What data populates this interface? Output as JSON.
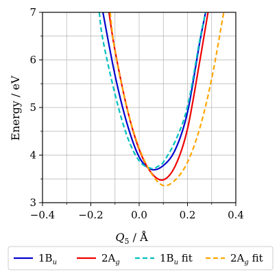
{
  "chart_data": {
    "type": "line",
    "xlabel": "Q",
    "xlabel_sub": "5",
    "xlabel_unit": "/ Å",
    "ylabel": "Energy / eV",
    "xlim": [
      -0.4,
      0.4
    ],
    "ylim": [
      3,
      7
    ],
    "x_ticks": [
      -0.4,
      -0.2,
      0.0,
      0.2,
      0.4
    ],
    "x_tick_labels": [
      "−0.4",
      "−0.2",
      "0.0",
      "0.2",
      "0.4"
    ],
    "y_ticks": [
      3,
      4,
      5,
      6,
      7
    ],
    "y_tick_labels": [
      "3",
      "4",
      "5",
      "6",
      "7"
    ],
    "grid": true,
    "legend_position": "bottom-outside",
    "series": [
      {
        "name": "1B",
        "sub": "u",
        "suffix": "",
        "color": "#0000cc",
        "dash": "solid",
        "x": [
          -0.15,
          -0.1,
          -0.05,
          0.0,
          0.05,
          0.1,
          0.15,
          0.2,
          0.25,
          0.275
        ],
        "y": [
          7.0,
          5.68,
          4.66,
          3.96,
          3.7,
          3.78,
          4.12,
          4.9,
          6.35,
          7.0
        ]
      },
      {
        "name": "2A",
        "sub": "g",
        "suffix": "",
        "color": "#ee0000",
        "dash": "solid",
        "x": [
          -0.125,
          -0.1,
          -0.05,
          0.0,
          0.05,
          0.1,
          0.15,
          0.2,
          0.25,
          0.285
        ],
        "y": [
          7.0,
          6.2,
          4.98,
          4.12,
          3.63,
          3.48,
          3.78,
          4.55,
          5.95,
          7.0
        ]
      },
      {
        "name": "1B",
        "sub": "u",
        "suffix": " fit",
        "color": "#00bfbf",
        "dash": "dashed",
        "x": [
          -0.165,
          -0.15,
          -0.1,
          -0.05,
          0.0,
          0.05,
          0.08,
          0.1,
          0.15,
          0.2,
          0.25,
          0.275
        ],
        "y": [
          7.0,
          6.42,
          5.28,
          4.4,
          3.88,
          3.72,
          3.77,
          3.85,
          4.3,
          5.02,
          6.4,
          7.0
        ]
      },
      {
        "name": "2A",
        "sub": "g",
        "suffix": " fit",
        "color": "#ffa500",
        "dash": "dashed",
        "x": [
          -0.12,
          -0.1,
          -0.05,
          0.0,
          0.05,
          0.1,
          0.15,
          0.2,
          0.25,
          0.3,
          0.35
        ],
        "y": [
          7.0,
          6.18,
          4.98,
          4.15,
          3.62,
          3.36,
          3.48,
          3.85,
          4.55,
          5.6,
          7.0
        ]
      }
    ]
  }
}
